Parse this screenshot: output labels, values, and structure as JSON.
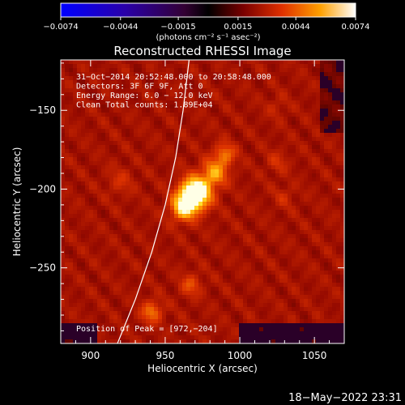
{
  "chart_data": {
    "type": "heatmap",
    "title": "Reconstructed RHESSI Image",
    "xlabel": "Heliocentric X (arcsec)",
    "ylabel": "Heliocentric Y (arcsec)",
    "xlim": [
      880,
      1070
    ],
    "ylim": [
      -298,
      -118
    ],
    "x_ticks": [
      900,
      950,
      1000,
      1050
    ],
    "y_ticks": [
      -150,
      -200,
      -250
    ],
    "x_tick_labels": [
      "900",
      "950",
      "1000",
      "1050"
    ],
    "y_tick_labels": [
      "−150",
      "−200",
      "−250"
    ],
    "colorbar": {
      "range": [
        -0.0074,
        0.0074
      ],
      "ticks": [
        -0.0074,
        -0.0044,
        -0.0015,
        0.0015,
        0.0044,
        0.0074
      ],
      "tick_labels": [
        "−0.0074",
        "−0.0044",
        "−0.0015",
        "0.0015",
        "0.0044",
        "0.0074"
      ],
      "units": "(photons cm⁻² s⁻¹ asec⁻²)"
    },
    "peak": [
      972,
      -204
    ],
    "info_lines": [
      "31−Oct−2014 20:52:48.000 to 20:58:48.000",
      "Detectors: 3F 6F 9F, Att 0",
      "Energy Range: 6.0 − 12.0 keV",
      "Clean     Total counts: 1.89E+04"
    ],
    "peak_label": "Position of Peak = [972,−204]",
    "limb_curve": [
      [
        918,
        -298
      ],
      [
        930,
        -270
      ],
      [
        941,
        -240
      ],
      [
        950,
        -210
      ],
      [
        957,
        -180
      ],
      [
        962,
        -150
      ],
      [
        966,
        -118
      ]
    ],
    "hot_spots": [
      {
        "x": 970,
        "y": -203,
        "amp": 1.0,
        "sigma": 7
      },
      {
        "x": 962,
        "y": -212,
        "amp": 0.55,
        "sigma": 6
      },
      {
        "x": 983,
        "y": -190,
        "amp": 0.45,
        "sigma": 6
      },
      {
        "x": 990,
        "y": -178,
        "amp": 0.35,
        "sigma": 5
      },
      {
        "x": 941,
        "y": -278,
        "amp": 0.35,
        "sigma": 5
      },
      {
        "x": 967,
        "y": -261,
        "amp": 0.25,
        "sigma": 5
      },
      {
        "x": 920,
        "y": -195,
        "amp": 0.15,
        "sigma": 6
      },
      {
        "x": 1025,
        "y": -183,
        "amp": 0.15,
        "sigma": 5
      },
      {
        "x": 1030,
        "y": -205,
        "amp": 0.12,
        "sigma": 5
      },
      {
        "x": 1025,
        "y": -148,
        "amp": 0.1,
        "sigma": 5
      }
    ]
  },
  "timestamp": "18−May−2022 23:31"
}
